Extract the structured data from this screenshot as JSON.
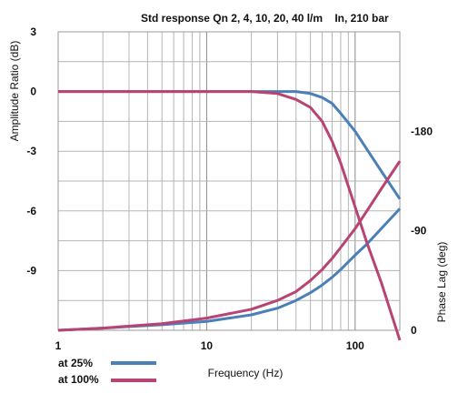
{
  "chart_data": {
    "type": "line",
    "title": "Std response Qn 2, 4, 10, 20, 40 l/m",
    "subtitle": "In, 210 bar",
    "xlabel": "Frequency (Hz)",
    "ylabel": "Amplitude Ratio (dB)",
    "y2label": "Phase Lag (deg)",
    "x_scale": "log",
    "xlim": [
      1,
      200
    ],
    "x_ticks": [
      "1",
      "10",
      "100"
    ],
    "ylim": [
      -12,
      3
    ],
    "y_ticks": [
      "3",
      "0",
      "-3",
      "-6",
      "-9"
    ],
    "y2lim": [
      0,
      270
    ],
    "y2_ticks": [
      "-180",
      "-90",
      "0"
    ],
    "grid": true,
    "legend": "bottom-left",
    "series": [
      {
        "name": "at 25%",
        "color": "#4a7fb8",
        "amplitude_db": [
          [
            1,
            0
          ],
          [
            5,
            0
          ],
          [
            10,
            0
          ],
          [
            20,
            0
          ],
          [
            30,
            0
          ],
          [
            40,
            0
          ],
          [
            50,
            -0.1
          ],
          [
            60,
            -0.3
          ],
          [
            70,
            -0.6
          ],
          [
            80,
            -1.1
          ],
          [
            100,
            -2
          ],
          [
            120,
            -2.9
          ],
          [
            150,
            -4
          ],
          [
            200,
            -5.4
          ]
        ],
        "phase_lag_deg": [
          [
            1,
            0
          ],
          [
            2,
            2
          ],
          [
            5,
            5
          ],
          [
            10,
            8
          ],
          [
            20,
            14
          ],
          [
            30,
            20
          ],
          [
            40,
            27
          ],
          [
            50,
            34
          ],
          [
            60,
            41
          ],
          [
            70,
            48
          ],
          [
            80,
            55
          ],
          [
            100,
            68
          ],
          [
            120,
            78
          ],
          [
            150,
            92
          ],
          [
            200,
            110
          ]
        ]
      },
      {
        "name": "at 100%",
        "color": "#b84473",
        "amplitude_db": [
          [
            1,
            0
          ],
          [
            5,
            0
          ],
          [
            10,
            0
          ],
          [
            20,
            0
          ],
          [
            30,
            -0.1
          ],
          [
            40,
            -0.4
          ],
          [
            50,
            -0.8
          ],
          [
            60,
            -1.5
          ],
          [
            70,
            -2.5
          ],
          [
            80,
            -3.6
          ],
          [
            100,
            -5.8
          ],
          [
            120,
            -7.6
          ],
          [
            150,
            -9.6
          ],
          [
            200,
            -12.5
          ]
        ],
        "phase_lag_deg": [
          [
            1,
            0
          ],
          [
            2,
            2
          ],
          [
            5,
            6
          ],
          [
            10,
            11
          ],
          [
            20,
            19
          ],
          [
            30,
            27
          ],
          [
            40,
            35
          ],
          [
            50,
            45
          ],
          [
            60,
            55
          ],
          [
            70,
            65
          ],
          [
            80,
            75
          ],
          [
            100,
            92
          ],
          [
            120,
            108
          ],
          [
            150,
            128
          ],
          [
            200,
            153
          ]
        ]
      }
    ]
  }
}
